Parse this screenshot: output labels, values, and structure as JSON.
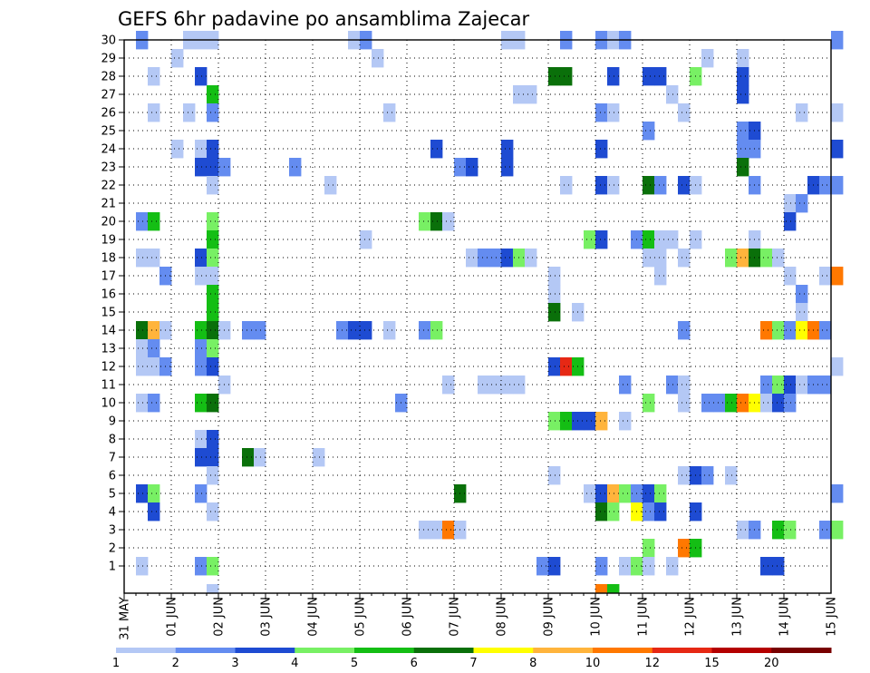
{
  "chart_data": {
    "type": "heatmap",
    "title": "GEFS 6hr padavine po ansamblima Zajecar",
    "xlabel": "",
    "ylabel": "",
    "x_start": "2025-05-31T00:00",
    "x_step_hours": 6,
    "x_count": 61,
    "x_ticks": [
      "31 MAY",
      "01 JUN",
      "02 JUN",
      "03 JUN",
      "04 JUN",
      "05 JUN",
      "06 JUN",
      "07 JUN",
      "08 JUN",
      "09 JUN",
      "10 JUN",
      "11 JUN",
      "12 JUN",
      "13 JUN",
      "14 JUN",
      "15 JUN"
    ],
    "y_ticks": [
      1,
      2,
      3,
      4,
      5,
      6,
      7,
      8,
      9,
      10,
      11,
      12,
      13,
      14,
      15,
      16,
      17,
      18,
      19,
      20,
      21,
      22,
      23,
      24,
      25,
      26,
      27,
      28,
      29,
      30
    ],
    "legend": {
      "position": "bottom",
      "labels": [
        "1",
        "2",
        "3",
        "4",
        "5",
        "6",
        "7",
        "8",
        "10",
        "12",
        "15",
        "20"
      ],
      "colors": [
        "#b4c8f5",
        "#648cf0",
        "#1e4bd2",
        "#78f064",
        "#14be14",
        "#0a700a",
        "#ffff00",
        "#ffb43c",
        "#ff7800",
        "#e62814",
        "#b40000",
        "#780000"
      ]
    },
    "grid": true,
    "cells_format": "[time_index, member, precip_mm]",
    "cells": [
      [
        1,
        30,
        2
      ],
      [
        5,
        30,
        1
      ],
      [
        6,
        30,
        1
      ],
      [
        7,
        30,
        1
      ],
      [
        19,
        30,
        1
      ],
      [
        20,
        30,
        2
      ],
      [
        32,
        30,
        1
      ],
      [
        33,
        30,
        1
      ],
      [
        37,
        30,
        2
      ],
      [
        40,
        30,
        2
      ],
      [
        41,
        30,
        1
      ],
      [
        42,
        30,
        2
      ],
      [
        60,
        30,
        2
      ],
      [
        4,
        29,
        1
      ],
      [
        21,
        29,
        1
      ],
      [
        49,
        29,
        1
      ],
      [
        52,
        29,
        1
      ],
      [
        2,
        28,
        1
      ],
      [
        6,
        28,
        3
      ],
      [
        36,
        28,
        6
      ],
      [
        37,
        28,
        6
      ],
      [
        41,
        28,
        3
      ],
      [
        44,
        28,
        3
      ],
      [
        45,
        28,
        3
      ],
      [
        48,
        28,
        4
      ],
      [
        52,
        28,
        3
      ],
      [
        7,
        27,
        5
      ],
      [
        33,
        27,
        1
      ],
      [
        34,
        27,
        1
      ],
      [
        46,
        27,
        1
      ],
      [
        52,
        27,
        3
      ],
      [
        2,
        26,
        1
      ],
      [
        5,
        26,
        1
      ],
      [
        7,
        26,
        2
      ],
      [
        22,
        26,
        1
      ],
      [
        40,
        26,
        2
      ],
      [
        41,
        26,
        1
      ],
      [
        47,
        26,
        1
      ],
      [
        57,
        26,
        1
      ],
      [
        60,
        26,
        1
      ],
      [
        44,
        25,
        2
      ],
      [
        52,
        25,
        2
      ],
      [
        53,
        25,
        3
      ],
      [
        4,
        24,
        1
      ],
      [
        6,
        24,
        1
      ],
      [
        7,
        24,
        3
      ],
      [
        26,
        24,
        3
      ],
      [
        32,
        24,
        3
      ],
      [
        40,
        24,
        3
      ],
      [
        52,
        24,
        2
      ],
      [
        53,
        24,
        2
      ],
      [
        60,
        24,
        3
      ],
      [
        6,
        23,
        3
      ],
      [
        7,
        23,
        3
      ],
      [
        8,
        23,
        2
      ],
      [
        14,
        23,
        2
      ],
      [
        28,
        23,
        2
      ],
      [
        29,
        23,
        3
      ],
      [
        32,
        23,
        3
      ],
      [
        52,
        23,
        6
      ],
      [
        7,
        22,
        1
      ],
      [
        17,
        22,
        1
      ],
      [
        37,
        22,
        1
      ],
      [
        40,
        22,
        3
      ],
      [
        41,
        22,
        1
      ],
      [
        44,
        22,
        6
      ],
      [
        45,
        22,
        2
      ],
      [
        47,
        22,
        3
      ],
      [
        48,
        22,
        1
      ],
      [
        53,
        22,
        2
      ],
      [
        58,
        22,
        3
      ],
      [
        59,
        22,
        2
      ],
      [
        60,
        22,
        2
      ],
      [
        56,
        21,
        1
      ],
      [
        57,
        21,
        2
      ],
      [
        1,
        20,
        2
      ],
      [
        2,
        20,
        5
      ],
      [
        7,
        20,
        4
      ],
      [
        25,
        20,
        4
      ],
      [
        26,
        20,
        6
      ],
      [
        27,
        20,
        1
      ],
      [
        56,
        20,
        3
      ],
      [
        7,
        19,
        5
      ],
      [
        20,
        19,
        1
      ],
      [
        39,
        19,
        4
      ],
      [
        40,
        19,
        3
      ],
      [
        43,
        19,
        2
      ],
      [
        44,
        19,
        5
      ],
      [
        45,
        19,
        1
      ],
      [
        46,
        19,
        1
      ],
      [
        48,
        19,
        1
      ],
      [
        53,
        19,
        1
      ],
      [
        1,
        18,
        1
      ],
      [
        2,
        18,
        1
      ],
      [
        6,
        18,
        3
      ],
      [
        7,
        18,
        4
      ],
      [
        29,
        18,
        1
      ],
      [
        30,
        18,
        2
      ],
      [
        31,
        18,
        2
      ],
      [
        32,
        18,
        3
      ],
      [
        33,
        18,
        4
      ],
      [
        34,
        18,
        1
      ],
      [
        44,
        18,
        1
      ],
      [
        45,
        18,
        1
      ],
      [
        47,
        18,
        1
      ],
      [
        51,
        18,
        4
      ],
      [
        52,
        18,
        9
      ],
      [
        53,
        18,
        6
      ],
      [
        54,
        18,
        4
      ],
      [
        55,
        18,
        1
      ],
      [
        3,
        17,
        2
      ],
      [
        6,
        17,
        1
      ],
      [
        7,
        17,
        1
      ],
      [
        36,
        17,
        1
      ],
      [
        45,
        17,
        1
      ],
      [
        56,
        17,
        1
      ],
      [
        59,
        17,
        1
      ],
      [
        60,
        17,
        10
      ],
      [
        7,
        16,
        5
      ],
      [
        36,
        16,
        1
      ],
      [
        57,
        16,
        2
      ],
      [
        7,
        15,
        5
      ],
      [
        36,
        15,
        6
      ],
      [
        38,
        15,
        1
      ],
      [
        57,
        15,
        1
      ],
      [
        1,
        14,
        6
      ],
      [
        2,
        14,
        8
      ],
      [
        3,
        14,
        1
      ],
      [
        6,
        14,
        5
      ],
      [
        7,
        14,
        6
      ],
      [
        8,
        14,
        1
      ],
      [
        10,
        14,
        2
      ],
      [
        11,
        14,
        2
      ],
      [
        18,
        14,
        2
      ],
      [
        19,
        14,
        3
      ],
      [
        20,
        14,
        3
      ],
      [
        22,
        14,
        1
      ],
      [
        25,
        14,
        2
      ],
      [
        26,
        14,
        4
      ],
      [
        47,
        14,
        2
      ],
      [
        54,
        14,
        11
      ],
      [
        55,
        14,
        4
      ],
      [
        56,
        14,
        2
      ],
      [
        57,
        14,
        7
      ],
      [
        58,
        14,
        11
      ],
      [
        59,
        14,
        2
      ],
      [
        1,
        13,
        1
      ],
      [
        2,
        13,
        2
      ],
      [
        6,
        13,
        2
      ],
      [
        7,
        13,
        4
      ],
      [
        1,
        12,
        1
      ],
      [
        2,
        12,
        1
      ],
      [
        3,
        12,
        2
      ],
      [
        6,
        12,
        2
      ],
      [
        7,
        12,
        3
      ],
      [
        36,
        12,
        3
      ],
      [
        37,
        12,
        12
      ],
      [
        38,
        12,
        5
      ],
      [
        60,
        12,
        1
      ],
      [
        8,
        11,
        1
      ],
      [
        27,
        11,
        1
      ],
      [
        30,
        11,
        1
      ],
      [
        31,
        11,
        1
      ],
      [
        32,
        11,
        1
      ],
      [
        33,
        11,
        1
      ],
      [
        42,
        11,
        2
      ],
      [
        46,
        11,
        2
      ],
      [
        47,
        11,
        1
      ],
      [
        54,
        11,
        2
      ],
      [
        55,
        11,
        4
      ],
      [
        56,
        11,
        3
      ],
      [
        57,
        11,
        1
      ],
      [
        58,
        11,
        2
      ],
      [
        59,
        11,
        2
      ],
      [
        1,
        10,
        1
      ],
      [
        2,
        10,
        2
      ],
      [
        6,
        10,
        5
      ],
      [
        7,
        10,
        6
      ],
      [
        23,
        10,
        2
      ],
      [
        44,
        10,
        4
      ],
      [
        47,
        10,
        1
      ],
      [
        49,
        10,
        2
      ],
      [
        50,
        10,
        2
      ],
      [
        51,
        10,
        5
      ],
      [
        52,
        10,
        11
      ],
      [
        53,
        10,
        7
      ],
      [
        54,
        10,
        1
      ],
      [
        55,
        10,
        3
      ],
      [
        56,
        10,
        2
      ],
      [
        36,
        9,
        4
      ],
      [
        37,
        9,
        5
      ],
      [
        38,
        9,
        3
      ],
      [
        39,
        9,
        3
      ],
      [
        40,
        9,
        8
      ],
      [
        42,
        9,
        1
      ],
      [
        6,
        8,
        1
      ],
      [
        7,
        8,
        3
      ],
      [
        6,
        7,
        3
      ],
      [
        7,
        7,
        3
      ],
      [
        10,
        7,
        6
      ],
      [
        11,
        7,
        1
      ],
      [
        16,
        7,
        1
      ],
      [
        7,
        6,
        1
      ],
      [
        36,
        6,
        1
      ],
      [
        47,
        6,
        1
      ],
      [
        48,
        6,
        3
      ],
      [
        49,
        6,
        2
      ],
      [
        51,
        6,
        1
      ],
      [
        1,
        5,
        3
      ],
      [
        2,
        5,
        4
      ],
      [
        6,
        5,
        2
      ],
      [
        28,
        5,
        6
      ],
      [
        39,
        5,
        1
      ],
      [
        40,
        5,
        3
      ],
      [
        41,
        5,
        9
      ],
      [
        42,
        5,
        4
      ],
      [
        43,
        5,
        2
      ],
      [
        44,
        5,
        3
      ],
      [
        45,
        5,
        4
      ],
      [
        60,
        5,
        2
      ],
      [
        2,
        4,
        3
      ],
      [
        7,
        4,
        1
      ],
      [
        40,
        4,
        6
      ],
      [
        41,
        4,
        4
      ],
      [
        43,
        4,
        7
      ],
      [
        44,
        4,
        2
      ],
      [
        45,
        4,
        3
      ],
      [
        48,
        4,
        3
      ],
      [
        25,
        3,
        1
      ],
      [
        26,
        3,
        1
      ],
      [
        27,
        3,
        10
      ],
      [
        28,
        3,
        1
      ],
      [
        52,
        3,
        1
      ],
      [
        53,
        3,
        2
      ],
      [
        55,
        3,
        5
      ],
      [
        56,
        3,
        4
      ],
      [
        59,
        3,
        2
      ],
      [
        60,
        3,
        4
      ],
      [
        44,
        2,
        4
      ],
      [
        47,
        2,
        11
      ],
      [
        48,
        2,
        5
      ],
      [
        1,
        1,
        1
      ],
      [
        6,
        1,
        2
      ],
      [
        7,
        1,
        4
      ],
      [
        35,
        1,
        2
      ],
      [
        36,
        1,
        3
      ],
      [
        40,
        1,
        2
      ],
      [
        42,
        1,
        1
      ],
      [
        43,
        1,
        4
      ],
      [
        44,
        1,
        1
      ],
      [
        46,
        1,
        1
      ],
      [
        54,
        1,
        3
      ],
      [
        55,
        1,
        3
      ],
      [
        7,
        0,
        1
      ],
      [
        40,
        0,
        11
      ],
      [
        41,
        0,
        5
      ]
    ]
  }
}
